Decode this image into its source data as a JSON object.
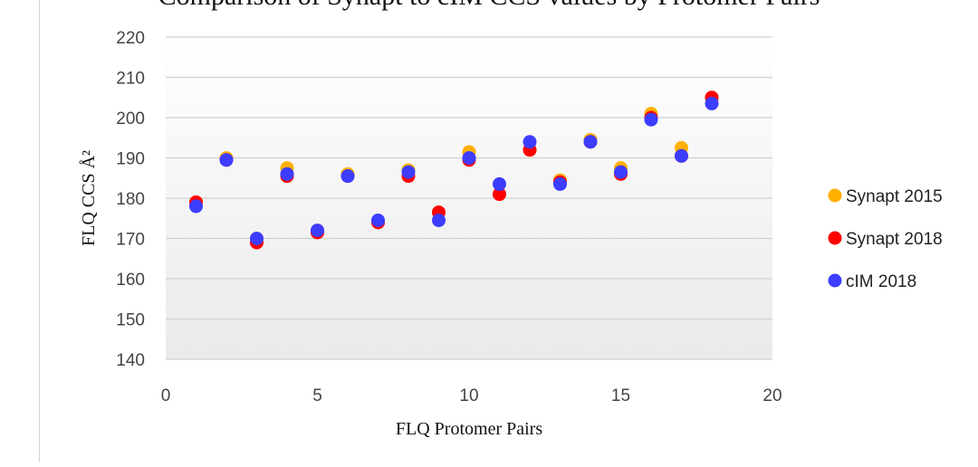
{
  "chart_data": {
    "type": "scatter",
    "title": "",
    "title_visible_fragment": "Comparison of Synapt to cIM CCS values by Protomer Pairs",
    "xlabel": "FLQ Protomer Pairs",
    "ylabel": "FLQ CCS Å²",
    "xlim": [
      0,
      20
    ],
    "ylim": [
      140,
      220
    ],
    "x_ticks": [
      0,
      5,
      10,
      15,
      20
    ],
    "y_ticks": [
      140,
      150,
      160,
      170,
      180,
      190,
      200,
      210,
      220
    ],
    "grid": "horizontal",
    "legend_position": "right",
    "series": [
      {
        "name": "Synapt 2015",
        "color": "#FFB000",
        "x": [
          1,
          2,
          3,
          4,
          5,
          6,
          7,
          8,
          9,
          10,
          11,
          12,
          13,
          14,
          15,
          16,
          17,
          18
        ],
        "y": [
          179,
          190,
          170,
          187.5,
          172,
          186,
          174,
          187,
          176.5,
          191.5,
          181,
          192,
          184.5,
          194.5,
          187.5,
          201,
          192.5,
          205
        ]
      },
      {
        "name": "Synapt 2018",
        "color": "#FF0000",
        "x": [
          1,
          2,
          3,
          4,
          5,
          6,
          7,
          8,
          9,
          10,
          11,
          12,
          13,
          14,
          15,
          16,
          17,
          18
        ],
        "y": [
          179,
          189.5,
          169,
          185.5,
          171.5,
          185.5,
          174,
          185.5,
          176.5,
          189.5,
          181,
          192,
          184,
          194,
          186,
          200,
          190.5,
          205
        ]
      },
      {
        "name": "cIM 2018",
        "color": "#3D3DFF",
        "x": [
          1,
          2,
          3,
          4,
          5,
          6,
          7,
          8,
          9,
          10,
          11,
          12,
          13,
          14,
          15,
          16,
          17,
          18
        ],
        "y": [
          178,
          189.5,
          170,
          186,
          172,
          185.5,
          174.5,
          186.5,
          174.5,
          190,
          183.5,
          194,
          183.5,
          194,
          186.5,
          199.5,
          190.5,
          203.5
        ]
      }
    ]
  }
}
